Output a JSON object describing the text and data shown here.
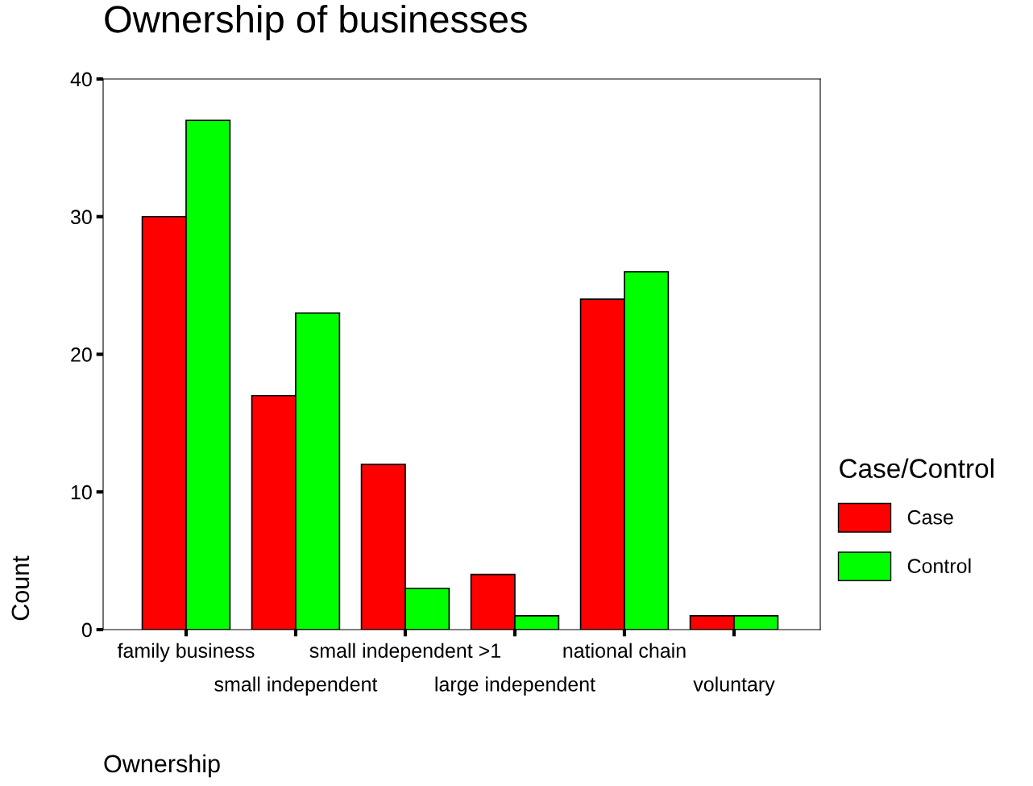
{
  "chart_data": {
    "type": "bar",
    "title": "Ownership of businesses",
    "xlabel": "Ownership",
    "ylabel": "Count",
    "legend_title": "Case/Control",
    "categories": [
      "family business",
      "small independent",
      "small independent >1",
      "large independent",
      "national chain",
      "voluntary"
    ],
    "series": [
      {
        "name": "Case",
        "color": "#ff0000",
        "values": [
          30,
          17,
          12,
          4,
          24,
          1
        ]
      },
      {
        "name": "Control",
        "color": "#00ff00",
        "values": [
          37,
          23,
          3,
          1,
          26,
          1
        ]
      }
    ],
    "ylim": [
      0,
      40
    ],
    "yticks": [
      0,
      10,
      20,
      30,
      40
    ],
    "grid": false,
    "legend": "right"
  }
}
